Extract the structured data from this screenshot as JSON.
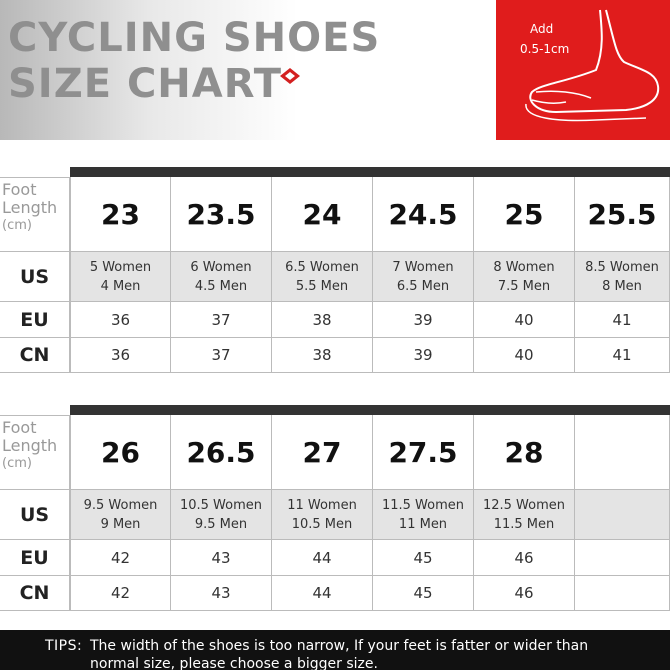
{
  "header": {
    "title_lines": [
      "CYCLING SHOES",
      "SIZE CHART"
    ],
    "note_lines": [
      "Add",
      "0.5-1cm"
    ]
  },
  "tables": [
    {
      "foot_label": [
        "Foot",
        "Length",
        "(cm)"
      ],
      "row_labels": [
        "US",
        "EU",
        "CN"
      ],
      "sizes": [
        "23",
        "23.5",
        "24",
        "24.5",
        "25",
        "25.5"
      ],
      "us": [
        [
          "5 Women",
          "4 Men"
        ],
        [
          "6 Women",
          "4.5 Men"
        ],
        [
          "6.5 Women",
          "5.5 Men"
        ],
        [
          "7 Women",
          "6.5 Men"
        ],
        [
          "8 Women",
          "7.5 Men"
        ],
        [
          "8.5 Women",
          "8 Men"
        ]
      ],
      "eu": [
        "36",
        "37",
        "38",
        "39",
        "40",
        "41"
      ],
      "cn": [
        "36",
        "37",
        "38",
        "39",
        "40",
        "41"
      ]
    },
    {
      "foot_label": [
        "Foot",
        "Length",
        "(cm)"
      ],
      "row_labels": [
        "US",
        "EU",
        "CN"
      ],
      "sizes": [
        "26",
        "26.5",
        "27",
        "27.5",
        "28"
      ],
      "us": [
        [
          "9.5 Women",
          "9 Men"
        ],
        [
          "10.5 Women",
          "9.5 Men"
        ],
        [
          "11 Women",
          "10.5 Men"
        ],
        [
          "11.5 Women",
          "11 Men"
        ],
        [
          "12.5 Women",
          "11.5 Men"
        ]
      ],
      "eu": [
        "42",
        "43",
        "44",
        "45",
        "46"
      ],
      "cn": [
        "42",
        "43",
        "44",
        "45",
        "46"
      ]
    }
  ],
  "tips": {
    "label": "TIPS:",
    "lines": [
      "The width of the shoes is too narrow, If your feet is fatter or wider than",
      "normal size, please choose a bigger size."
    ]
  }
}
